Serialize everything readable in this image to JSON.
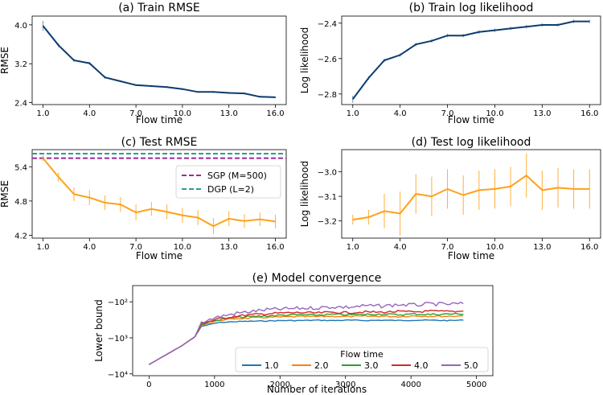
{
  "chart_data": [
    {
      "id": "a",
      "type": "line",
      "title": "(a) Train RMSE",
      "xlabel": "Flow time",
      "ylabel": "RMSE",
      "x": [
        1,
        2,
        3,
        4,
        5,
        6,
        7,
        8,
        9,
        10,
        11,
        12,
        13,
        14,
        15,
        16
      ],
      "xticks": [
        "1.0",
        "4.0",
        "7.0",
        "10.0",
        "13.0",
        "16.0"
      ],
      "xtick_values": [
        1,
        4,
        7,
        10,
        13,
        16
      ],
      "yticks": [
        "4.0",
        "3.2",
        "2.4"
      ],
      "ytick_values": [
        4.0,
        3.2,
        2.4
      ],
      "ylim": [
        2.36,
        4.18
      ],
      "color": "#0d3b6e",
      "series": [
        {
          "name": "Train RMSE",
          "values": [
            3.98,
            3.58,
            3.27,
            3.21,
            2.92,
            2.84,
            2.76,
            2.74,
            2.72,
            2.68,
            2.62,
            2.62,
            2.6,
            2.59,
            2.52,
            2.51
          ]
        }
      ],
      "errors": [
        0.1,
        0.04,
        0.03,
        0.03,
        0.03,
        0.02,
        0.02,
        0.02,
        0.02,
        0.02,
        0.02,
        0.02,
        0.02,
        0.02,
        0.02,
        0.02
      ]
    },
    {
      "id": "b",
      "type": "line",
      "title": "(b) Train log likelihood",
      "xlabel": "Flow time",
      "ylabel": "Log likelihood",
      "x": [
        1,
        2,
        3,
        4,
        5,
        6,
        7,
        8,
        9,
        10,
        11,
        12,
        13,
        14,
        15,
        16
      ],
      "xticks": [
        "1.0",
        "4.0",
        "7.0",
        "10.0",
        "13.0",
        "16.0"
      ],
      "xtick_values": [
        1,
        4,
        7,
        10,
        13,
        16
      ],
      "yticks": [
        "−2.4",
        "−2.6",
        "−2.8"
      ],
      "ytick_values": [
        -2.4,
        -2.6,
        -2.8
      ],
      "ylim": [
        -2.86,
        -2.36
      ],
      "color": "#0d3b6e",
      "series": [
        {
          "name": "Train log likelihood",
          "values": [
            -2.83,
            -2.71,
            -2.61,
            -2.58,
            -2.52,
            -2.5,
            -2.47,
            -2.47,
            -2.45,
            -2.44,
            -2.43,
            -2.42,
            -2.41,
            -2.41,
            -2.39,
            -2.39
          ]
        }
      ],
      "errors": [
        0.02,
        0.01,
        0.01,
        0.01,
        0.01,
        0.01,
        0.01,
        0.01,
        0.01,
        0.01,
        0.01,
        0.01,
        0.01,
        0.01,
        0.01,
        0.01
      ]
    },
    {
      "id": "c",
      "type": "line",
      "title": "(c) Test RMSE",
      "xlabel": "Flow time",
      "ylabel": "RMSE",
      "x": [
        1,
        2,
        3,
        4,
        5,
        6,
        7,
        8,
        9,
        10,
        11,
        12,
        13,
        14,
        15,
        16
      ],
      "xticks": [
        "1.0",
        "4.0",
        "7.0",
        "10.0",
        "13.0",
        "16.0"
      ],
      "xtick_values": [
        1,
        4,
        7,
        10,
        13,
        16
      ],
      "yticks": [
        "5.4",
        "4.8",
        "4.2"
      ],
      "ytick_values": [
        5.4,
        4.8,
        4.2
      ],
      "ylim": [
        4.15,
        5.7
      ],
      "color": "#ffa11a",
      "series": [
        {
          "name": "Test RMSE",
          "values": [
            5.55,
            5.22,
            4.92,
            4.86,
            4.77,
            4.74,
            4.6,
            4.66,
            4.61,
            4.55,
            4.51,
            4.36,
            4.49,
            4.45,
            4.48,
            4.44
          ]
        }
      ],
      "errors": [
        0.05,
        0.08,
        0.12,
        0.13,
        0.13,
        0.13,
        0.14,
        0.12,
        0.13,
        0.13,
        0.13,
        0.14,
        0.13,
        0.12,
        0.12,
        0.12
      ],
      "reference_lines": [
        {
          "label": "SGP (M=500)",
          "value": 5.55,
          "color": "#a0279f"
        },
        {
          "label": "DGP (L=2)",
          "value": 5.63,
          "color": "#2a9d8f"
        }
      ]
    },
    {
      "id": "d",
      "type": "line",
      "title": "(d) Test log likelihood",
      "xlabel": "Flow time",
      "ylabel": "Log likelihood",
      "x": [
        1,
        2,
        3,
        4,
        5,
        6,
        7,
        8,
        9,
        10,
        11,
        12,
        13,
        14,
        15,
        16
      ],
      "xticks": [
        "1.0",
        "4.0",
        "7.0",
        "10.0",
        "13.0",
        "16.0"
      ],
      "xtick_values": [
        1,
        4,
        7,
        10,
        13,
        16
      ],
      "yticks": [
        "−3.0",
        "−3.1",
        "−3.2"
      ],
      "ytick_values": [
        -3.0,
        -3.1,
        -3.2
      ],
      "ylim": [
        -3.27,
        -2.91
      ],
      "color": "#ffa11a",
      "series": [
        {
          "name": "Test log likelihood",
          "values": [
            -3.195,
            -3.185,
            -3.16,
            -3.17,
            -3.09,
            -3.1,
            -3.07,
            -3.095,
            -3.075,
            -3.07,
            -3.06,
            -3.015,
            -3.075,
            -3.065,
            -3.07,
            -3.07
          ]
        }
      ],
      "errors": [
        0.02,
        0.03,
        0.07,
        0.09,
        0.08,
        0.08,
        0.08,
        0.08,
        0.08,
        0.08,
        0.08,
        0.09,
        0.08,
        0.08,
        0.08,
        0.08
      ]
    },
    {
      "id": "e",
      "type": "line",
      "title": "(e) Model convergence",
      "xlabel": "Number of iterations",
      "ylabel": "Lower bound",
      "xticks": [
        "0",
        "1000",
        "2000",
        "3000",
        "4000",
        "5000"
      ],
      "xtick_values": [
        0,
        1000,
        2000,
        3000,
        4000,
        5000
      ],
      "yticks": [
        "−10²",
        "−10³",
        "−10⁴"
      ],
      "ytick_values": [
        2,
        3,
        4
      ],
      "yscale": "symlog-negative",
      "ylim_log10_magnitude": [
        4.05,
        1.55
      ],
      "legend_title": "Flow time",
      "series": [
        {
          "name": "1.0",
          "color": "#1f77b4",
          "values_log10_neg": [
            3.74,
            3.48,
            3.22,
            2.97,
            2.68,
            2.58,
            2.55,
            2.54,
            2.53,
            2.52,
            2.52,
            2.51,
            2.52,
            2.51,
            2.52,
            2.51,
            2.52,
            2.51,
            2.51,
            2.52,
            2.51
          ]
        },
        {
          "name": "2.0",
          "color": "#ff7f0e",
          "values_log10_neg": [
            3.74,
            3.48,
            3.22,
            2.97,
            2.64,
            2.52,
            2.47,
            2.45,
            2.43,
            2.42,
            2.41,
            2.41,
            2.4,
            2.41,
            2.4,
            2.4,
            2.41,
            2.39,
            2.4,
            2.4,
            2.39
          ]
        },
        {
          "name": "3.0",
          "color": "#2ca02c",
          "values_log10_neg": [
            3.74,
            3.48,
            3.22,
            2.97,
            2.62,
            2.5,
            2.44,
            2.41,
            2.39,
            2.37,
            2.36,
            2.37,
            2.35,
            2.36,
            2.35,
            2.34,
            2.36,
            2.34,
            2.35,
            2.34,
            2.34
          ]
        },
        {
          "name": "4.0",
          "color": "#d62728",
          "values_log10_neg": [
            3.74,
            3.48,
            3.22,
            2.97,
            2.6,
            2.48,
            2.4,
            2.36,
            2.33,
            2.31,
            2.3,
            2.31,
            2.29,
            2.3,
            2.28,
            2.29,
            2.27,
            2.28,
            2.26,
            2.27,
            2.26
          ]
        },
        {
          "name": "5.0",
          "color": "#9467bd",
          "values_log10_neg": [
            3.74,
            3.48,
            3.22,
            2.97,
            2.56,
            2.42,
            2.33,
            2.27,
            2.22,
            2.2,
            2.18,
            2.17,
            2.14,
            2.15,
            2.11,
            2.12,
            2.08,
            2.09,
            2.06,
            2.07,
            2.05
          ]
        }
      ],
      "x": [
        0,
        250,
        500,
        700,
        800,
        1050,
        1300,
        1550,
        1800,
        2050,
        2300,
        2550,
        2800,
        3050,
        3300,
        3550,
        3800,
        4050,
        4300,
        4550,
        4800
      ]
    }
  ]
}
